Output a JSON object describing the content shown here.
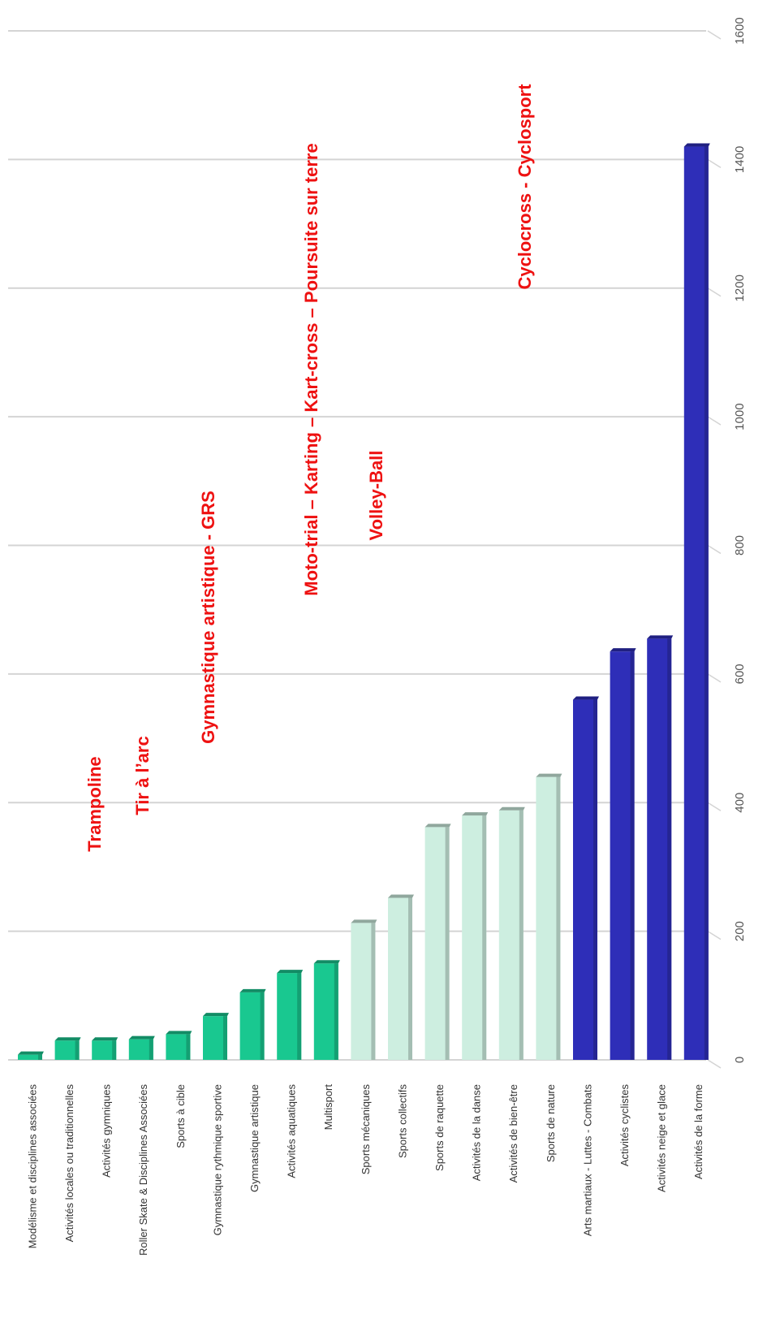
{
  "chart_data": {
    "type": "bar",
    "categories": [
      "Modélisme et disciplines associées",
      "Activités locales ou traditionnelles",
      "Activités gymniques",
      "Roller Skate & Disciplines Associées",
      "Sports à cible",
      "Gymnastique rythmique sportive",
      "Gymnastique artistique",
      "Activités aquatiques",
      "Multisport",
      "Sports mécaniques",
      "Sports collectifs",
      "Sports de raquette",
      "Activités de la danse",
      "Activités de bien-être",
      "Sports de nature",
      "Arts martiaux - Luttes - Combats",
      "Activités cyclistes",
      "Activités neige et glace",
      "Activités de la forme"
    ],
    "values": [
      8,
      30,
      30,
      32,
      40,
      68,
      105,
      135,
      150,
      213,
      252,
      362,
      380,
      388,
      440,
      560,
      635,
      655,
      1420
    ],
    "colors": [
      "#19c890",
      "#19c890",
      "#19c890",
      "#19c890",
      "#19c890",
      "#19c890",
      "#19c890",
      "#19c890",
      "#19c890",
      "#cdeee0",
      "#cdeee0",
      "#cdeee0",
      "#cdeee0",
      "#cdeee0",
      "#cdeee0",
      "#2e2eb8",
      "#2e2eb8",
      "#2e2eb8",
      "#2e2eb8"
    ],
    "ylim": [
      0,
      1600
    ],
    "yticks": [
      0,
      200,
      400,
      600,
      800,
      1000,
      1200,
      1400,
      1600
    ],
    "grid": true,
    "annotations": [
      "Trampoline",
      "Tir à l’arc",
      "Gymnastique artistique - GRS",
      "Moto-trial – Karting – Kart-cross – Poursuite sur terre",
      "Volley-Ball",
      "Cyclocross - Cyclosport"
    ]
  }
}
